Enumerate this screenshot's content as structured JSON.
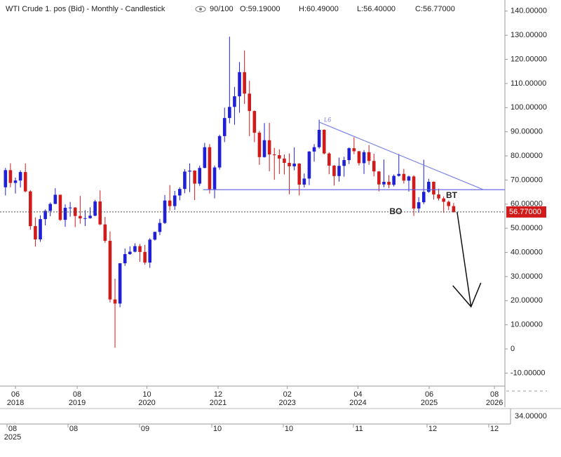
{
  "header": {
    "title": "WTI Crude 1. pos (Bid) - Monthly - Candlestick",
    "counter": "90/100",
    "open": "O:59.19000",
    "high": "H:60.49000",
    "low": "L:56.40000",
    "close": "C:56.77000"
  },
  "chart_data": {
    "type": "candlestick",
    "up_color": "#1f1fd6",
    "down_color": "#d11a1a",
    "ylim": [
      -15.4,
      144.6
    ],
    "xlim": [
      -1.1,
      100.3
    ],
    "yticks": [
      {
        "value": 140,
        "label": "140.00000"
      },
      {
        "value": 130,
        "label": "130.00000"
      },
      {
        "value": 120,
        "label": "120.00000"
      },
      {
        "value": 110,
        "label": "110.00000"
      },
      {
        "value": 100,
        "label": "100.00000"
      },
      {
        "value": 90,
        "label": "90.00000"
      },
      {
        "value": 80,
        "label": "80.00000"
      },
      {
        "value": 70,
        "label": "70.00000"
      },
      {
        "value": 60,
        "label": "60.00000"
      },
      {
        "value": 50,
        "label": "50.00000"
      },
      {
        "value": 40,
        "label": "40.00000"
      },
      {
        "value": 30,
        "label": "30.00000"
      },
      {
        "value": 20,
        "label": "20.00000"
      },
      {
        "value": 10,
        "label": "10.00000"
      },
      0,
      {
        "value": -10,
        "label": "-10.00000"
      }
    ],
    "xticks": [
      {
        "value": 2,
        "label": "06",
        "year": "2018"
      },
      {
        "value": 14.4,
        "label": "08",
        "year": "2019"
      },
      {
        "value": 28.4,
        "label": "10",
        "year": "2020"
      },
      {
        "value": 42.7,
        "label": "12",
        "year": "2021"
      },
      {
        "value": 56.6,
        "label": "02",
        "year": "2023"
      },
      {
        "value": 70.8,
        "label": "04",
        "year": "2024"
      },
      {
        "value": 85.1,
        "label": "06",
        "year": "2025"
      },
      {
        "value": 98.2,
        "label": "08",
        "year": "2026"
      }
    ],
    "last_price": {
      "value": 56.77,
      "label": "56.77000"
    },
    "candles": [
      {
        "o": 67.0,
        "h": 75.0,
        "l": 63.6,
        "c": 74.1
      },
      {
        "o": 74.1,
        "h": 76.9,
        "l": 67.0,
        "c": 68.8
      },
      {
        "o": 68.8,
        "h": 71.0,
        "l": 64.4,
        "c": 69.8
      },
      {
        "o": 69.8,
        "h": 74.0,
        "l": 66.9,
        "c": 73.3
      },
      {
        "o": 73.3,
        "h": 76.9,
        "l": 64.9,
        "c": 65.3
      },
      {
        "o": 65.3,
        "h": 65.8,
        "l": 49.4,
        "c": 50.9
      },
      {
        "o": 50.9,
        "h": 54.5,
        "l": 42.4,
        "c": 45.4
      },
      {
        "o": 45.4,
        "h": 55.4,
        "l": 44.4,
        "c": 53.8
      },
      {
        "o": 53.8,
        "h": 57.8,
        "l": 51.2,
        "c": 57.2
      },
      {
        "o": 57.2,
        "h": 60.7,
        "l": 55.0,
        "c": 60.1
      },
      {
        "o": 60.1,
        "h": 66.6,
        "l": 60.0,
        "c": 63.9
      },
      {
        "o": 63.9,
        "h": 63.9,
        "l": 53.0,
        "c": 53.5
      },
      {
        "o": 53.5,
        "h": 59.9,
        "l": 50.6,
        "c": 58.5
      },
      {
        "o": 58.5,
        "h": 60.9,
        "l": 54.8,
        "c": 58.6
      },
      {
        "o": 58.6,
        "h": 58.8,
        "l": 50.5,
        "c": 55.1
      },
      {
        "o": 55.1,
        "h": 63.4,
        "l": 51.9,
        "c": 54.1
      },
      {
        "o": 54.1,
        "h": 57.5,
        "l": 50.9,
        "c": 54.2
      },
      {
        "o": 54.2,
        "h": 58.7,
        "l": 54.0,
        "c": 55.2
      },
      {
        "o": 55.2,
        "h": 61.8,
        "l": 55.0,
        "c": 61.1
      },
      {
        "o": 61.1,
        "h": 65.7,
        "l": 51.3,
        "c": 51.6
      },
      {
        "o": 51.6,
        "h": 54.7,
        "l": 44.0,
        "c": 44.8
      },
      {
        "o": 44.8,
        "h": 48.7,
        "l": 19.3,
        "c": 20.5
      },
      {
        "o": 20.5,
        "h": 29.1,
        "l": 0.5,
        "c": 18.8
      },
      {
        "o": 18.8,
        "h": 35.6,
        "l": 17.3,
        "c": 35.5
      },
      {
        "o": 35.5,
        "h": 41.6,
        "l": 34.4,
        "c": 39.3
      },
      {
        "o": 39.3,
        "h": 42.5,
        "l": 39.0,
        "c": 40.3
      },
      {
        "o": 40.3,
        "h": 43.8,
        "l": 40.0,
        "c": 42.6
      },
      {
        "o": 42.6,
        "h": 43.5,
        "l": 36.1,
        "c": 40.2
      },
      {
        "o": 40.2,
        "h": 43.1,
        "l": 34.9,
        "c": 35.8
      },
      {
        "o": 35.8,
        "h": 45.9,
        "l": 33.6,
        "c": 45.3
      },
      {
        "o": 45.3,
        "h": 48.6,
        "l": 44.9,
        "c": 48.5
      },
      {
        "o": 48.5,
        "h": 53.9,
        "l": 47.2,
        "c": 52.2
      },
      {
        "o": 52.2,
        "h": 63.8,
        "l": 51.8,
        "c": 61.5
      },
      {
        "o": 61.5,
        "h": 67.9,
        "l": 57.3,
        "c": 59.2
      },
      {
        "o": 59.2,
        "h": 65.5,
        "l": 57.6,
        "c": 63.6
      },
      {
        "o": 63.6,
        "h": 67.0,
        "l": 61.6,
        "c": 66.3
      },
      {
        "o": 66.3,
        "h": 74.5,
        "l": 64.5,
        "c": 73.5
      },
      {
        "o": 73.5,
        "h": 76.9,
        "l": 65.0,
        "c": 73.9
      },
      {
        "o": 73.9,
        "h": 74.0,
        "l": 61.7,
        "c": 68.5
      },
      {
        "o": 68.5,
        "h": 76.0,
        "l": 67.6,
        "c": 75.0
      },
      {
        "o": 75.0,
        "h": 85.4,
        "l": 74.9,
        "c": 83.6
      },
      {
        "o": 83.6,
        "h": 84.9,
        "l": 64.4,
        "c": 66.2
      },
      {
        "o": 66.2,
        "h": 76.0,
        "l": 62.4,
        "c": 75.2
      },
      {
        "o": 75.2,
        "h": 88.8,
        "l": 74.3,
        "c": 88.2
      },
      {
        "o": 88.2,
        "h": 100.0,
        "l": 85.7,
        "c": 95.7
      },
      {
        "o": 95.7,
        "h": 129.4,
        "l": 93.5,
        "c": 100.3
      },
      {
        "o": 100.3,
        "h": 108.6,
        "l": 92.9,
        "c": 104.7
      },
      {
        "o": 104.7,
        "h": 118.9,
        "l": 97.9,
        "c": 114.7
      },
      {
        "o": 114.7,
        "h": 123.7,
        "l": 101.5,
        "c": 105.8
      },
      {
        "o": 105.8,
        "h": 111.1,
        "l": 88.2,
        "c": 98.6
      },
      {
        "o": 98.6,
        "h": 98.8,
        "l": 85.7,
        "c": 89.6
      },
      {
        "o": 89.6,
        "h": 90.4,
        "l": 76.3,
        "c": 79.5
      },
      {
        "o": 79.5,
        "h": 93.6,
        "l": 79.3,
        "c": 86.5
      },
      {
        "o": 86.5,
        "h": 93.7,
        "l": 73.6,
        "c": 80.6
      },
      {
        "o": 80.6,
        "h": 83.3,
        "l": 70.1,
        "c": 80.3
      },
      {
        "o": 80.3,
        "h": 82.7,
        "l": 72.5,
        "c": 78.9
      },
      {
        "o": 78.9,
        "h": 80.6,
        "l": 72.3,
        "c": 77.1
      },
      {
        "o": 77.1,
        "h": 81.0,
        "l": 64.1,
        "c": 75.7
      },
      {
        "o": 75.7,
        "h": 83.5,
        "l": 74.0,
        "c": 76.8
      },
      {
        "o": 76.8,
        "h": 77.0,
        "l": 63.6,
        "c": 68.1
      },
      {
        "o": 68.1,
        "h": 72.7,
        "l": 66.9,
        "c": 70.6
      },
      {
        "o": 70.6,
        "h": 82.0,
        "l": 67.9,
        "c": 81.8
      },
      {
        "o": 81.8,
        "h": 84.9,
        "l": 77.6,
        "c": 83.6
      },
      {
        "o": 83.6,
        "h": 95.0,
        "l": 83.0,
        "c": 90.8
      },
      {
        "o": 90.8,
        "h": 91.0,
        "l": 80.6,
        "c": 81.0
      },
      {
        "o": 81.0,
        "h": 81.5,
        "l": 72.4,
        "c": 75.96
      },
      {
        "o": 75.96,
        "h": 76.2,
        "l": 67.7,
        "c": 71.65
      },
      {
        "o": 71.65,
        "h": 79.3,
        "l": 69.3,
        "c": 75.85
      },
      {
        "o": 75.85,
        "h": 79.6,
        "l": 71.4,
        "c": 78.26
      },
      {
        "o": 78.26,
        "h": 83.5,
        "l": 76.6,
        "c": 83.17
      },
      {
        "o": 83.17,
        "h": 87.7,
        "l": 80.7,
        "c": 81.93
      },
      {
        "o": 81.93,
        "h": 82.0,
        "l": 76.0,
        "c": 76.99
      },
      {
        "o": 76.99,
        "h": 82.4,
        "l": 72.5,
        "c": 81.54
      },
      {
        "o": 81.54,
        "h": 84.5,
        "l": 76.3,
        "c": 77.91
      },
      {
        "o": 77.91,
        "h": 80.9,
        "l": 71.5,
        "c": 73.55
      },
      {
        "o": 73.55,
        "h": 73.7,
        "l": 65.3,
        "c": 68.17
      },
      {
        "o": 68.17,
        "h": 78.5,
        "l": 67.0,
        "c": 69.26
      },
      {
        "o": 69.26,
        "h": 72.0,
        "l": 66.6,
        "c": 68.0
      },
      {
        "o": 68.0,
        "h": 72.3,
        "l": 67.3,
        "c": 71.72
      },
      {
        "o": 71.72,
        "h": 80.8,
        "l": 71.4,
        "c": 72.53
      },
      {
        "o": 72.53,
        "h": 74.6,
        "l": 68.5,
        "c": 69.76
      },
      {
        "o": 69.76,
        "h": 71.8,
        "l": 65.2,
        "c": 71.48
      },
      {
        "o": 71.48,
        "h": 72.0,
        "l": 55.1,
        "c": 58.21
      },
      {
        "o": 58.21,
        "h": 62.9,
        "l": 56.5,
        "c": 60.79
      },
      {
        "o": 60.79,
        "h": 78.4,
        "l": 60.0,
        "c": 65.11
      },
      {
        "o": 65.11,
        "h": 70.5,
        "l": 64.7,
        "c": 69.26
      },
      {
        "o": 69.26,
        "h": 69.4,
        "l": 61.9,
        "c": 64.01
      },
      {
        "o": 64.01,
        "h": 66.4,
        "l": 61.5,
        "c": 62.37
      },
      {
        "o": 62.37,
        "h": 63.2,
        "l": 56.4,
        "c": 60.98
      },
      {
        "o": 60.98,
        "h": 61.5,
        "l": 57.5,
        "c": 59.19
      },
      {
        "o": 59.19,
        "h": 60.49,
        "l": 56.4,
        "c": 56.77
      }
    ],
    "annotations": {
      "support": {
        "x": [
          39.7,
          100.3
        ],
        "y": [
          66,
          66
        ]
      },
      "trendline": {
        "x": [
          63,
          96
        ],
        "y": [
          94,
          66
        ],
        "label": "L6",
        "color": "#7b84e6"
      },
      "arrow": {
        "x": [
          90.7,
          93.5
        ],
        "y": [
          56.8,
          17.5
        ]
      },
      "texts": [
        {
          "text": "BO",
          "x": 78.4,
          "y": 56.8
        },
        {
          "text": "BT",
          "x": 89.6,
          "y": 63.5
        }
      ]
    }
  },
  "navigator": {
    "labels": [
      {
        "label": "08",
        "year": "2025"
      },
      {
        "label": "08"
      },
      {
        "label": "09"
      },
      {
        "label": "10"
      },
      {
        "label": "10"
      },
      {
        "label": "11"
      },
      {
        "label": "12"
      },
      {
        "label": "12"
      }
    ],
    "value_label": "34.00000"
  }
}
